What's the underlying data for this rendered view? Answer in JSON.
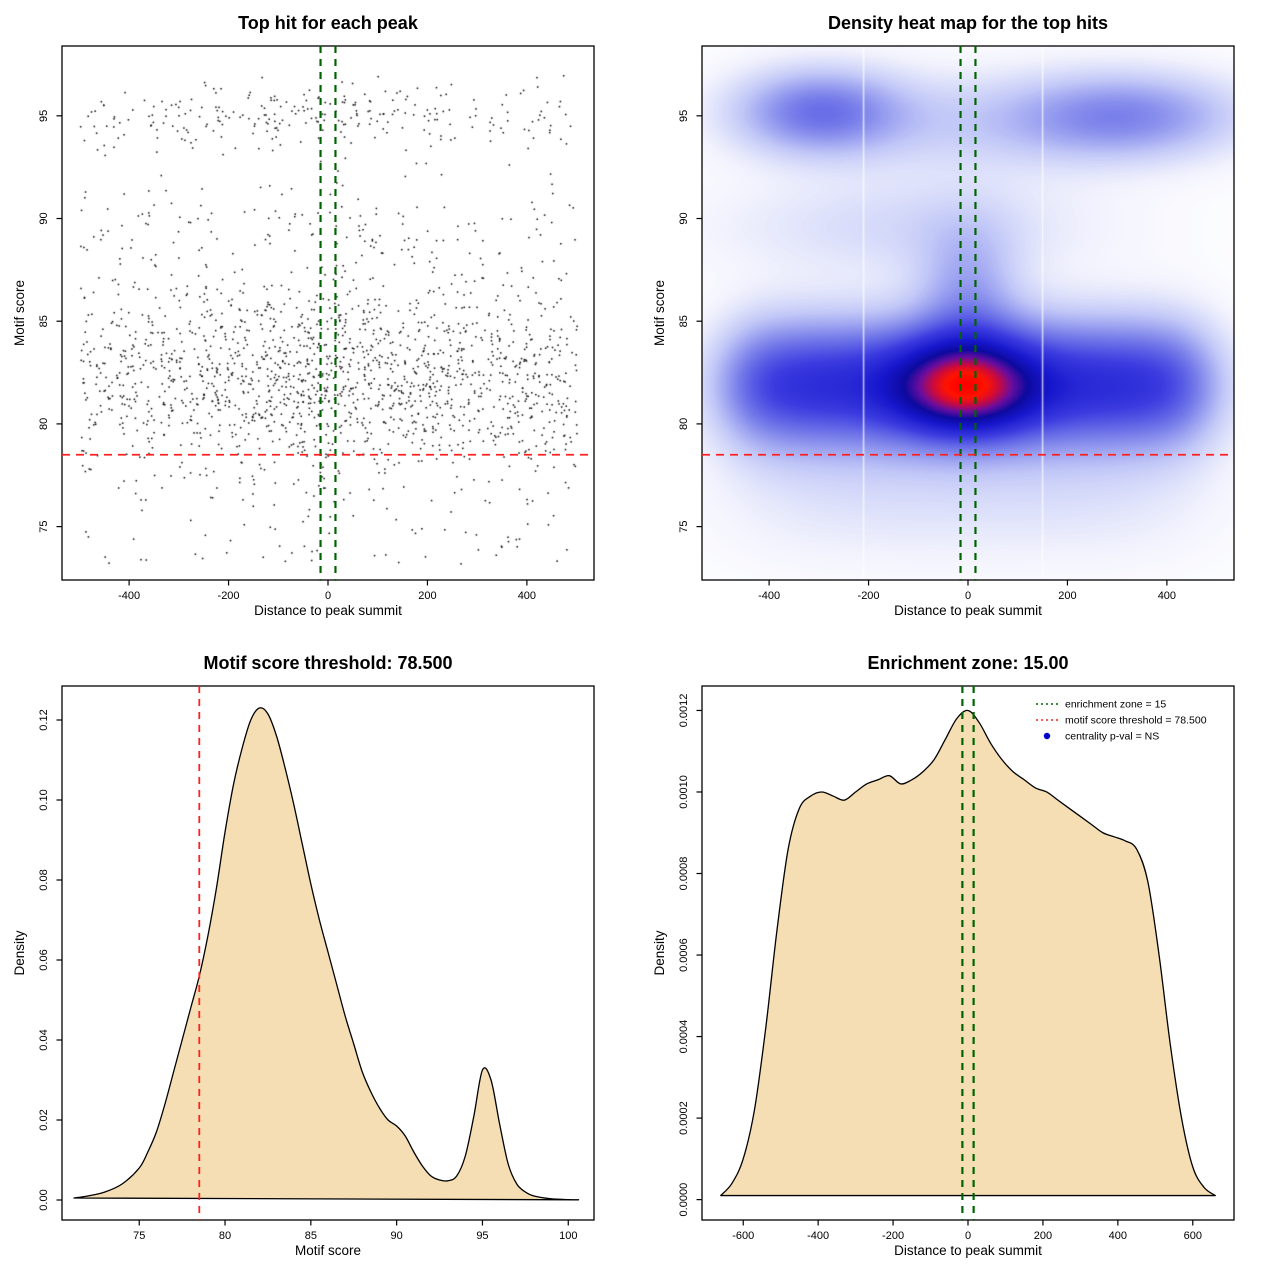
{
  "page": {
    "background": "#ffffff"
  },
  "colors": {
    "threshold_red": "#ff2020",
    "zone_green": "#006400",
    "density_fill": "#f5deb3",
    "centrality_blue": "#0000cd"
  },
  "chart_data": [
    {
      "type": "scatter",
      "title": "Top hit for each peak",
      "xlabel": "Distance to peak summit",
      "ylabel": "Motif score",
      "xlim": [
        -535,
        535
      ],
      "ylim": [
        72.4,
        98.4
      ],
      "xticks": [
        -400,
        -200,
        0,
        200,
        400
      ],
      "xtick_labels": [
        "-400",
        "-200",
        "0",
        "200",
        "400"
      ],
      "yticks": [
        75,
        80,
        85,
        90,
        95
      ],
      "ytick_labels": [
        "75",
        "80",
        "85",
        "90",
        "95"
      ],
      "points": {
        "n": 2100,
        "seed": 11,
        "color": "#000000",
        "size": 1.5,
        "xmin": -505,
        "xmax": 505,
        "ymin": 73.0,
        "ymax": 97.6,
        "x_components": [
          {
            "type": "uniform",
            "min": -500,
            "max": 500,
            "w": 0.85
          },
          {
            "type": "normal",
            "mean": 0,
            "sd": 150,
            "w": 0.15
          }
        ],
        "y_components": [
          {
            "type": "normal",
            "mean": 82.0,
            "sd": 2.1,
            "w": 0.63
          },
          {
            "type": "normal",
            "mean": 85.5,
            "sd": 1.6,
            "w": 0.11
          },
          {
            "type": "normal",
            "mean": 89.5,
            "sd": 1.3,
            "w": 0.07
          },
          {
            "type": "normal",
            "mean": 95.0,
            "sd": 0.9,
            "w": 0.13
          },
          {
            "type": "uniform",
            "min": 73.2,
            "max": 78.5,
            "w": 0.06
          }
        ]
      },
      "vlines": [
        {
          "x": -15,
          "color": "#006400",
          "dash": "7,6",
          "width": 2.2,
          "name": "enrichment-zone-left-line"
        },
        {
          "x": 15,
          "color": "#006400",
          "dash": "7,6",
          "width": 2.2,
          "name": "enrichment-zone-right-line"
        }
      ],
      "hlines": [
        {
          "y": 78.5,
          "color": "#ff2020",
          "dash": "8,6",
          "width": 1.8,
          "name": "motif-score-threshold-line"
        }
      ]
    },
    {
      "type": "heatmap",
      "title": "Density heat map for the top hits",
      "xlabel": "Distance to peak summit",
      "ylabel": "Motif score",
      "xlim": [
        -535,
        535
      ],
      "ylim": [
        72.4,
        98.4
      ],
      "xticks": [
        -400,
        -200,
        0,
        200,
        400
      ],
      "xtick_labels": [
        "-400",
        "-200",
        "0",
        "200",
        "400"
      ],
      "yticks": [
        75,
        80,
        85,
        90,
        95
      ],
      "ytick_labels": [
        "75",
        "80",
        "85",
        "90",
        "95"
      ],
      "heat": {
        "gamma": 0.78,
        "colormap": [
          {
            "t": 0.0,
            "c": "#ffffff"
          },
          {
            "t": 0.06,
            "c": "#f1f2fd"
          },
          {
            "t": 0.18,
            "c": "#c2c8f7"
          },
          {
            "t": 0.33,
            "c": "#7a80ea"
          },
          {
            "t": 0.48,
            "c": "#3c3ce0"
          },
          {
            "t": 0.62,
            "c": "#1717cd"
          },
          {
            "t": 0.73,
            "c": "#0d0a9e"
          },
          {
            "t": 0.82,
            "c": "#6a0d9e"
          },
          {
            "t": 0.9,
            "c": "#cc0a3c"
          },
          {
            "t": 0.96,
            "c": "#ff1400"
          },
          {
            "t": 1.0,
            "c": "#ff0000"
          }
        ],
        "white_lines_x": [
          -210,
          150
        ],
        "components": [
          {
            "name": "main-band",
            "w": 1.0,
            "x": {
              "type": "plateau",
              "lo": -468,
              "hi": 468,
              "edge": 42
            },
            "y": {
              "type": "gauss",
              "mean": 81.9,
              "sd": 2.1
            }
          },
          {
            "name": "central-hotspot",
            "w": 1.15,
            "x": {
              "type": "gauss",
              "mean": -5,
              "sd": 92
            },
            "y": {
              "type": "gauss",
              "mean": 81.8,
              "sd": 1.55
            }
          },
          {
            "name": "central-plume",
            "w": 0.33,
            "x": {
              "type": "gauss",
              "mean": 0,
              "sd": 70
            },
            "y": {
              "type": "gauss",
              "mean": 86.2,
              "sd": 2.4
            }
          },
          {
            "name": "upper-shoulder",
            "w": 0.16,
            "x": {
              "type": "gauss",
              "mean": -120,
              "sd": 260
            },
            "y": {
              "type": "gauss",
              "mean": 89.6,
              "sd": 1.7
            }
          },
          {
            "name": "top-left-blob",
            "w": 0.55,
            "x": {
              "type": "gauss",
              "mean": -300,
              "sd": 115
            },
            "y": {
              "type": "gauss",
              "mean": 95.2,
              "sd": 1.4
            }
          },
          {
            "name": "top-right-blob",
            "w": 0.45,
            "x": {
              "type": "gauss",
              "mean": 320,
              "sd": 155
            },
            "y": {
              "type": "gauss",
              "mean": 95.0,
              "sd": 1.4
            }
          },
          {
            "name": "top-center-haze",
            "w": 0.18,
            "x": {
              "type": "gauss",
              "mean": 20,
              "sd": 240
            },
            "y": {
              "type": "gauss",
              "mean": 94.6,
              "sd": 1.7
            }
          },
          {
            "name": "lower-tail",
            "w": 0.13,
            "x": {
              "type": "plateau",
              "lo": -440,
              "hi": 440,
              "edge": 80
            },
            "y": {
              "type": "gauss",
              "mean": 76.6,
              "sd": 2.3
            }
          }
        ]
      },
      "vlines": [
        {
          "x": -15,
          "color": "#006400",
          "dash": "7,6",
          "width": 2.2,
          "name": "enrichment-zone-left-line"
        },
        {
          "x": 15,
          "color": "#006400",
          "dash": "7,6",
          "width": 2.2,
          "name": "enrichment-zone-right-line"
        }
      ],
      "hlines": [
        {
          "y": 78.5,
          "color": "#ff2020",
          "dash": "8,6",
          "width": 1.8,
          "name": "motif-score-threshold-line"
        }
      ]
    },
    {
      "type": "area",
      "title": "Motif score threshold: 78.500",
      "xlabel": "Motif score",
      "ylabel": "Density",
      "xlim": [
        70.5,
        101.5
      ],
      "ylim": [
        -0.005,
        0.1285
      ],
      "xticks": [
        75,
        80,
        85,
        90,
        95,
        100
      ],
      "xtick_labels": [
        "75",
        "80",
        "85",
        "90",
        "95",
        "100"
      ],
      "yticks": [
        0,
        0.02,
        0.04,
        0.06,
        0.08,
        0.1,
        0.12
      ],
      "ytick_labels": [
        "0.00",
        "0.02",
        "0.04",
        "0.06",
        "0.08",
        "0.10",
        "0.12"
      ],
      "fill": "#f5deb3",
      "curve": {
        "x": [
          71.2,
          72,
          73,
          74,
          75,
          75.5,
          76,
          76.5,
          77,
          77.5,
          78,
          78.5,
          79,
          79.5,
          80,
          80.5,
          81,
          81.5,
          82,
          82.5,
          83,
          83.5,
          84,
          84.5,
          85,
          85.5,
          86,
          86.5,
          87,
          87.5,
          88,
          88.5,
          89,
          89.5,
          90,
          90.5,
          91,
          91.5,
          92,
          92.5,
          93,
          93.5,
          94,
          94.5,
          95,
          95.5,
          96,
          96.5,
          97,
          97.5,
          98,
          99,
          100,
          100.6
        ],
        "y": [
          0.0005,
          0.001,
          0.002,
          0.004,
          0.008,
          0.012,
          0.017,
          0.024,
          0.032,
          0.04,
          0.048,
          0.056,
          0.066,
          0.078,
          0.092,
          0.104,
          0.113,
          0.12,
          0.123,
          0.1215,
          0.116,
          0.108,
          0.099,
          0.089,
          0.079,
          0.07,
          0.062,
          0.054,
          0.046,
          0.039,
          0.032,
          0.027,
          0.023,
          0.02,
          0.0185,
          0.016,
          0.012,
          0.0085,
          0.006,
          0.005,
          0.0048,
          0.006,
          0.011,
          0.021,
          0.0325,
          0.03,
          0.019,
          0.009,
          0.004,
          0.002,
          0.001,
          0.0003,
          0.0001,
          5e-05
        ]
      },
      "vlines": [
        {
          "x": 78.5,
          "color": "#ff2020",
          "dash": "7,6",
          "width": 1.8,
          "name": "motif-score-threshold-line"
        }
      ]
    },
    {
      "type": "area",
      "title": "Enrichment zone: 15.00",
      "xlabel": "Distance to peak summit",
      "ylabel": "Density",
      "xlim": [
        -710,
        710
      ],
      "ylim": [
        -5e-05,
        0.00126
      ],
      "xticks": [
        -600,
        -400,
        -200,
        0,
        200,
        400,
        600
      ],
      "xtick_labels": [
        "-600",
        "-400",
        "-200",
        "0",
        "200",
        "400",
        "600"
      ],
      "yticks": [
        0,
        0.0002,
        0.0004,
        0.0006,
        0.0008,
        0.001,
        0.0012
      ],
      "ytick_labels": [
        "0.0000",
        "0.0002",
        "0.0004",
        "0.0006",
        "0.0008",
        "0.0010",
        "0.0012"
      ],
      "fill": "#f5deb3",
      "curve": {
        "x": [
          -660,
          -630,
          -600,
          -570,
          -540,
          -510,
          -480,
          -450,
          -420,
          -390,
          -360,
          -330,
          -300,
          -270,
          -240,
          -210,
          -180,
          -150,
          -120,
          -90,
          -60,
          -30,
          0,
          30,
          60,
          90,
          120,
          150,
          180,
          210,
          240,
          270,
          300,
          330,
          360,
          390,
          420,
          450,
          480,
          510,
          540,
          570,
          600,
          630,
          660
        ],
        "y": [
          1e-05,
          4e-05,
          0.0001,
          0.00022,
          0.00042,
          0.00066,
          0.00086,
          0.00096,
          0.00099,
          0.001,
          0.00099,
          0.00098,
          0.001,
          0.00102,
          0.00103,
          0.00104,
          0.00102,
          0.00103,
          0.00105,
          0.00108,
          0.00113,
          0.00118,
          0.0012,
          0.00117,
          0.00112,
          0.00108,
          0.00105,
          0.00103,
          0.00101,
          0.001,
          0.00098,
          0.00096,
          0.00094,
          0.00092,
          0.0009,
          0.00089,
          0.00088,
          0.00086,
          0.00078,
          0.0006,
          0.00038,
          0.0002,
          8e-05,
          3e-05,
          1e-05
        ]
      },
      "vlines": [
        {
          "x": -15,
          "color": "#006400",
          "dash": "7,6",
          "width": 2.2,
          "name": "enrichment-zone-left-line"
        },
        {
          "x": 15,
          "color": "#006400",
          "dash": "7,6",
          "width": 2.2,
          "name": "enrichment-zone-right-line"
        }
      ],
      "legend": {
        "items": [
          {
            "label": "enrichment zone = 15",
            "type": "line",
            "color": "#006400"
          },
          {
            "label": "motif score threshold = 78.500",
            "type": "line",
            "color": "#ff2020"
          },
          {
            "label": "centrality p-val = NS",
            "type": "point",
            "color": "#0000cd"
          }
        ]
      }
    }
  ]
}
